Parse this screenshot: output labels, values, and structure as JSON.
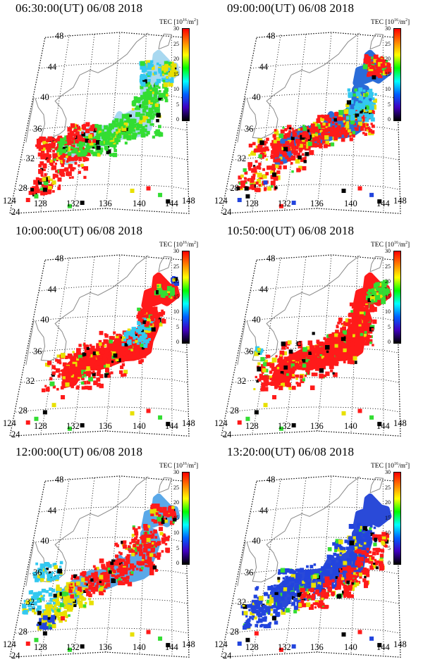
{
  "colorbar": {
    "label_prefix": "TEC [10",
    "label_exp": "16",
    "label_suffix": "/m",
    "label_sq": "2",
    "label_close": "]",
    "ticks": [
      "30",
      "25",
      "20",
      "15",
      "10",
      "5",
      "0"
    ],
    "colors": [
      "#ff0000",
      "#ff8000",
      "#ffff00",
      "#00ff00",
      "#00ffff",
      "#0060ff",
      "#4000c0",
      "#000000"
    ]
  },
  "lat_labels": [
    "48",
    "44",
    "40",
    "36",
    "32",
    "28",
    "24"
  ],
  "lon_labels": [
    "124",
    "128",
    "132",
    "136",
    "140",
    "144",
    "148"
  ],
  "panels": [
    {
      "title": "06:30:00(UT)  06/08 2018",
      "scene": "a"
    },
    {
      "title": "09:00:00(UT)  06/08 2018",
      "scene": "b"
    },
    {
      "title": "10:00:00(UT)  06/08 2018",
      "scene": "c"
    },
    {
      "title": "10:50:00(UT)  06/08 2018",
      "scene": "d"
    },
    {
      "title": "12:00:00(UT)  06/08 2018",
      "scene": "e"
    },
    {
      "title": "13:20:00(UT)  06/08 2018",
      "scene": "f"
    }
  ]
}
